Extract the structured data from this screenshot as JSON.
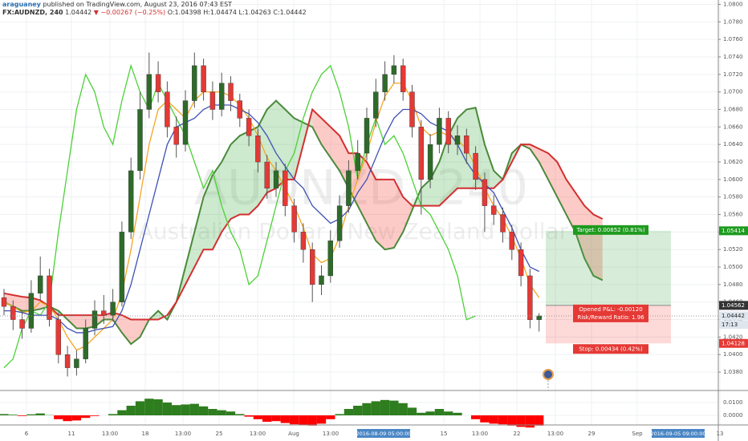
{
  "header": {
    "author": "araguaney",
    "published": "published on TradingView.com, August 23, 2016 07:43 EST",
    "symbol": "FX:AUDNZD, 240",
    "arrow": "▼",
    "change": "−0.00267 (−0.25%)",
    "open": "O:1.04398",
    "high": "H:1.04474",
    "low": "L:1.04263",
    "close": "C:1.04442"
  },
  "watermark": {
    "symbol": "AUDNZD, 240",
    "name": "Australian Dollar / New Zealand Dollar"
  },
  "chart_data": {
    "type": "candlestick",
    "up_color": "#2e6b2a",
    "down_color": "#e53935",
    "grid": true,
    "last": 1.04442,
    "countdown": "17:13",
    "ylim": [
      1.0359,
      1.0805
    ],
    "yticks": [
      {
        "value": 1.038,
        "label": "1.0380"
      },
      {
        "value": 1.04,
        "label": "1.0400"
      },
      {
        "value": 1.042,
        "label": "1.0420"
      },
      {
        "value": 1.044,
        "label": "1.0440"
      },
      {
        "value": 1.046,
        "label": "1.0460"
      },
      {
        "value": 1.048,
        "label": "1.0480"
      },
      {
        "value": 1.05,
        "label": "1.0500"
      },
      {
        "value": 1.052,
        "label": "1.0520"
      },
      {
        "value": 1.054,
        "label": "1.0540"
      },
      {
        "value": 1.056,
        "label": "1.0560"
      },
      {
        "value": 1.058,
        "label": "1.0580"
      },
      {
        "value": 1.06,
        "label": "1.0600"
      },
      {
        "value": 1.062,
        "label": "1.0620"
      },
      {
        "value": 1.064,
        "label": "1.0640"
      },
      {
        "value": 1.066,
        "label": "1.0660"
      },
      {
        "value": 1.068,
        "label": "1.0680"
      },
      {
        "value": 1.07,
        "label": "1.0700"
      },
      {
        "value": 1.072,
        "label": "1.0720"
      },
      {
        "value": 1.074,
        "label": "1.0740"
      },
      {
        "value": 1.076,
        "label": "1.0760"
      },
      {
        "value": 1.078,
        "label": "1.0780"
      },
      {
        "value": 1.08,
        "label": "1.0800"
      }
    ],
    "open": [
      1.0465,
      1.0455,
      1.044,
      1.043,
      1.047,
      1.049,
      1.044,
      1.04,
      1.0385,
      1.0395,
      1.043,
      1.045,
      1.0445,
      1.046,
      1.054,
      1.061,
      1.068,
      1.072,
      1.07,
      1.066,
      1.064,
      1.069,
      1.073,
      1.07,
      1.068,
      1.071,
      1.069,
      1.067,
      1.065,
      1.062,
      1.059,
      1.061,
      1.057,
      1.054,
      1.052,
      1.048,
      1.049,
      1.053,
      1.057,
      1.061,
      1.063,
      1.067,
      1.07,
      1.072,
      1.073,
      1.07,
      1.066,
      1.06,
      1.064,
      1.067,
      1.064,
      1.065,
      1.063,
      1.06,
      1.057,
      1.056,
      1.054,
      1.052,
      1.049,
      1.04398
    ],
    "high": [
      1.0475,
      1.0462,
      1.045,
      1.0485,
      1.0512,
      1.0498,
      1.0448,
      1.041,
      1.0405,
      1.044,
      1.0462,
      1.0468,
      1.0475,
      1.0552,
      1.0625,
      1.07,
      1.0745,
      1.0735,
      1.0712,
      1.0672,
      1.0702,
      1.0745,
      1.0738,
      1.0712,
      1.0722,
      1.0718,
      1.0698,
      1.068,
      1.0658,
      1.0628,
      1.062,
      1.0618,
      1.0578,
      1.055,
      1.0528,
      1.0502,
      1.0542,
      1.0582,
      1.0622,
      1.0645,
      1.0682,
      1.0715,
      1.0735,
      1.0742,
      1.0738,
      1.0708,
      1.0668,
      1.0652,
      1.0682,
      1.0678,
      1.0662,
      1.0658,
      1.0638,
      1.0608,
      1.0582,
      1.0568,
      1.0548,
      1.0528,
      1.0498,
      1.04474
    ],
    "low": [
      1.0445,
      1.0428,
      1.0418,
      1.0425,
      1.0462,
      1.0432,
      1.039,
      1.0375,
      1.0376,
      1.039,
      1.0422,
      1.0435,
      1.0438,
      1.0455,
      1.0532,
      1.06,
      1.067,
      1.0688,
      1.0648,
      1.0625,
      1.0632,
      1.0682,
      1.069,
      1.0668,
      1.0672,
      1.0678,
      1.066,
      1.0638,
      1.0608,
      1.0578,
      1.058,
      1.0558,
      1.0528,
      1.0505,
      1.046,
      1.0468,
      1.0482,
      1.0522,
      1.0562,
      1.06,
      1.0622,
      1.066,
      1.069,
      1.071,
      1.069,
      1.0648,
      1.056,
      1.059,
      1.063,
      1.063,
      1.0628,
      1.0618,
      1.0588,
      1.054,
      1.0548,
      1.0528,
      1.0508,
      1.0478,
      1.043,
      1.04263
    ],
    "close": [
      1.0455,
      1.044,
      1.043,
      1.047,
      1.049,
      1.044,
      1.04,
      1.0385,
      1.0395,
      1.043,
      1.045,
      1.0445,
      1.046,
      1.054,
      1.061,
      1.068,
      1.072,
      1.07,
      1.066,
      1.064,
      1.069,
      1.073,
      1.07,
      1.068,
      1.071,
      1.069,
      1.067,
      1.065,
      1.062,
      1.059,
      1.061,
      1.057,
      1.054,
      1.052,
      1.048,
      1.049,
      1.053,
      1.057,
      1.061,
      1.063,
      1.067,
      1.07,
      1.072,
      1.073,
      1.07,
      1.066,
      1.06,
      1.064,
      1.067,
      1.064,
      1.065,
      1.063,
      1.06,
      1.057,
      1.056,
      1.054,
      1.052,
      1.049,
      1.04398,
      1.04442
    ],
    "cloud": {
      "up_fill": "#4caf50",
      "down_fill": "#f44336",
      "span_a": {
        "color": "#4a8a3a",
        "values": [
          1.046,
          1.0455,
          1.045,
          1.045,
          1.0452,
          1.0455,
          1.045,
          1.044,
          1.043,
          1.043,
          1.0432,
          1.044,
          1.044,
          1.0425,
          1.0412,
          1.042,
          1.044,
          1.045,
          1.044,
          1.046,
          1.05,
          1.054,
          1.058,
          1.0605,
          1.062,
          1.064,
          1.065,
          1.0655,
          1.066,
          1.068,
          1.069,
          1.068,
          1.067,
          1.0665,
          1.066,
          1.064,
          1.0625,
          1.061,
          1.059,
          1.057,
          1.055,
          1.053,
          1.052,
          1.0522,
          1.054,
          1.0565,
          1.059,
          1.06,
          1.062,
          1.065,
          1.067,
          1.068,
          1.0682,
          1.064,
          1.061,
          1.06,
          1.063,
          1.064,
          1.0635,
          1.062,
          1.06,
          1.058,
          1.056,
          1.054,
          1.051,
          1.049,
          1.0485
        ]
      },
      "span_b": {
        "color": "#d32f2f",
        "values": [
          1.047,
          1.0468,
          1.0466,
          1.0465,
          1.0462,
          1.0455,
          1.0445,
          1.0445,
          1.0445,
          1.0445,
          1.0445,
          1.0445,
          1.0448,
          1.0445,
          1.044,
          1.044,
          1.044,
          1.044,
          1.0445,
          1.046,
          1.048,
          1.05,
          1.052,
          1.052,
          1.054,
          1.0555,
          1.056,
          1.056,
          1.057,
          1.0585,
          1.059,
          1.06,
          1.06,
          1.064,
          1.068,
          1.067,
          1.066,
          1.065,
          1.063,
          1.063,
          1.062,
          1.06,
          1.06,
          1.06,
          1.058,
          1.057,
          1.057,
          1.057,
          1.057,
          1.058,
          1.059,
          1.059,
          1.059,
          1.059,
          1.059,
          1.06,
          1.062,
          1.064,
          1.064,
          1.0635,
          1.063,
          1.062,
          1.06,
          1.0585,
          1.057,
          1.056,
          1.0555
        ]
      }
    },
    "lines": [
      {
        "color": "#4cd137",
        "values": [
          1.0385,
          1.0395,
          1.043,
          1.045,
          1.0445,
          1.046,
          1.054,
          1.061,
          1.068,
          1.072,
          1.07,
          1.066,
          1.064,
          1.069,
          1.073,
          1.07,
          1.068,
          1.071,
          1.069,
          1.067,
          1.065,
          1.062,
          1.059,
          1.061,
          1.057,
          1.054,
          1.052,
          1.048,
          1.049,
          1.053,
          1.057,
          1.061,
          1.063,
          1.067,
          1.07,
          1.072,
          1.073,
          1.07,
          1.066,
          1.06,
          1.064,
          1.067,
          1.064,
          1.065,
          1.063,
          1.06,
          1.057,
          1.056,
          1.054,
          1.052,
          1.049,
          1.04398,
          1.04442,
          null,
          null,
          null,
          null,
          null,
          null,
          null
        ]
      },
      {
        "color": "#f5a623",
        "values": [
          1.046,
          1.0455,
          1.0448,
          1.045,
          1.046,
          1.0455,
          1.044,
          1.042,
          1.0405,
          1.041,
          1.042,
          1.043,
          1.044,
          1.047,
          1.052,
          1.058,
          1.064,
          1.068,
          1.069,
          1.068,
          1.067,
          1.069,
          1.07,
          1.07,
          1.07,
          1.0695,
          1.0685,
          1.067,
          1.065,
          1.0625,
          1.061,
          1.059,
          1.057,
          1.0545,
          1.0515,
          1.0505,
          1.051,
          1.0535,
          1.057,
          1.06,
          1.063,
          1.0665,
          1.0695,
          1.071,
          1.071,
          1.069,
          1.066,
          1.065,
          1.0655,
          1.065,
          1.0645,
          1.0635,
          1.0615,
          1.059,
          1.057,
          1.0555,
          1.0535,
          1.051,
          1.048,
          1.0465
        ]
      },
      {
        "color": "#3f51b5",
        "values": [
          1.045,
          1.045,
          1.0448,
          1.0445,
          1.0445,
          1.0445,
          1.044,
          1.043,
          1.0425,
          1.0425,
          1.0428,
          1.043,
          1.0432,
          1.045,
          1.048,
          1.052,
          1.056,
          1.06,
          1.064,
          1.066,
          1.0665,
          1.067,
          1.068,
          1.0685,
          1.0685,
          1.0685,
          1.068,
          1.0675,
          1.0665,
          1.065,
          1.063,
          1.0615,
          1.06,
          1.059,
          1.057,
          1.056,
          1.055,
          1.0555,
          1.0565,
          1.0585,
          1.06,
          1.0625,
          1.065,
          1.067,
          1.068,
          1.068,
          1.0675,
          1.0665,
          1.066,
          1.0655,
          1.064,
          1.062,
          1.0605,
          1.0595,
          1.0585,
          1.0565,
          1.0545,
          1.052,
          1.05,
          1.0495
        ]
      }
    ],
    "position": {
      "target": 1.05414,
      "entry": 1.04562,
      "stop": 1.04128,
      "target_color": "#1e9b1e",
      "entry_color": "#333333",
      "stop_color": "#e53935",
      "target_text": "Target: 0.00852 (0.81%)",
      "pnl_text": "Opened P&L: -0.00120",
      "rr_text": "Risk/Reward Ratio: 1.96",
      "stop_text": "Stop: 0.00434 (0.42%)"
    },
    "xlabels": [
      "6",
      "11",
      "13:00",
      "18",
      "13:00",
      "25",
      "13:00",
      "Aug",
      "13:00",
      "15",
      "13:00",
      "22",
      "13:00",
      "29",
      "Sep",
      "13"
    ],
    "cursor_labels": [
      "2016-08-09 05:00:00",
      "2016-09-05 09:00:00"
    ],
    "oscillator": {
      "pos_color": "#2e7d1f",
      "neg_color": "#ff0000",
      "ylim": [
        -0.0075,
        0.0194
      ],
      "yticks": [
        {
          "value": 0.01,
          "label": "0.0100"
        },
        {
          "value": 0,
          "label": "0.0000"
        }
      ],
      "values": [
        0.001,
        0.0005,
        -0.0005,
        0.0008,
        0.0015,
        0.0002,
        -0.003,
        -0.0045,
        -0.004,
        -0.002,
        -0.0005,
        0,
        0.001,
        0.004,
        0.0075,
        0.011,
        0.013,
        0.0125,
        0.01,
        0.008,
        0.0085,
        0.009,
        0.007,
        0.005,
        0.004,
        0.003,
        0.001,
        -0.001,
        -0.003,
        -0.005,
        -0.0045,
        -0.006,
        -0.007,
        -0.0075,
        -0.008,
        -0.0065,
        -0.003,
        0.001,
        0.005,
        0.0075,
        0.0095,
        0.011,
        0.012,
        0.0115,
        0.0095,
        0.006,
        0.002,
        0.003,
        0.005,
        0.003,
        0.002,
        0,
        -0.003,
        -0.0055,
        -0.0065,
        -0.007,
        -0.008,
        -0.009,
        -0.0095,
        -0.008
      ]
    }
  }
}
